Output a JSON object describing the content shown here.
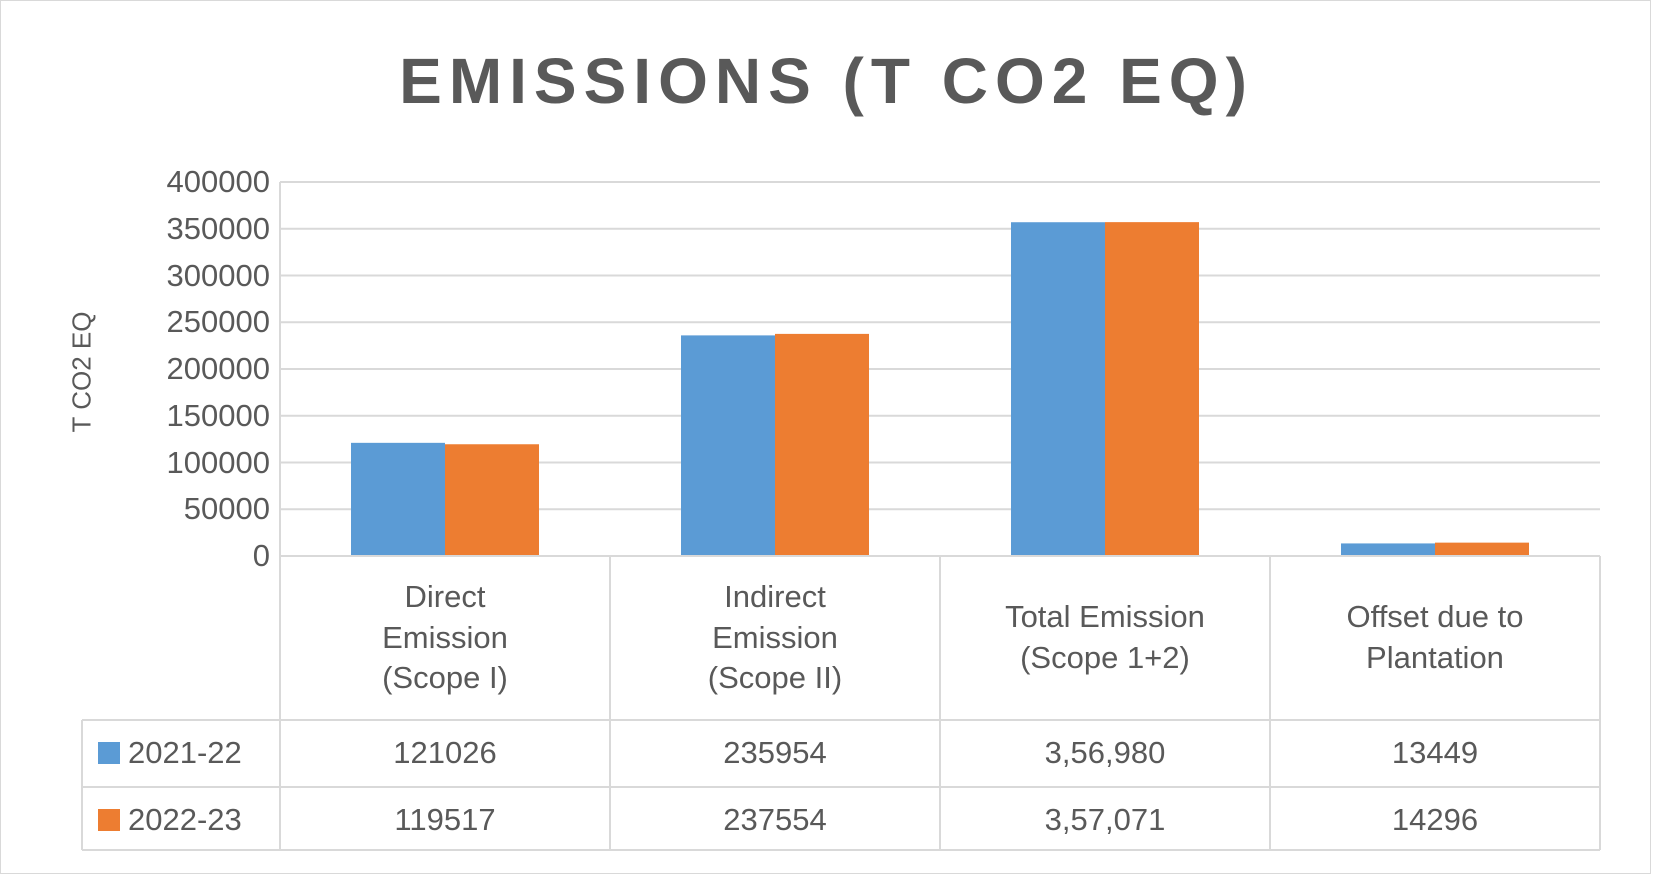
{
  "chart_data": {
    "type": "bar",
    "title": "EMISSIONS (T CO2 EQ)",
    "ylabel": "T CO2 EQ",
    "xlabel": "",
    "ylim": [
      0,
      400000
    ],
    "yticks": [
      "0",
      "50000",
      "100000",
      "150000",
      "200000",
      "250000",
      "300000",
      "350000",
      "400000"
    ],
    "categories": [
      "Direct\nEmission\n(Scope I)",
      "Indirect\nEmission\n(Scope II)",
      "Total Emission\n(Scope 1+2)",
      "Offset due to\nPlantation"
    ],
    "series": [
      {
        "name": "2021-22",
        "color": "#5b9bd5",
        "values": [
          121026,
          235954,
          356980,
          13449
        ],
        "labels": [
          "121026",
          "235954",
          "3,56,980",
          "13449"
        ]
      },
      {
        "name": "2022-23",
        "color": "#ed7d31",
        "values": [
          119517,
          237554,
          357071,
          14296
        ],
        "labels": [
          "119517",
          "237554",
          "3,57,071",
          "14296"
        ]
      }
    ],
    "grid": true,
    "legend": "data-table"
  }
}
